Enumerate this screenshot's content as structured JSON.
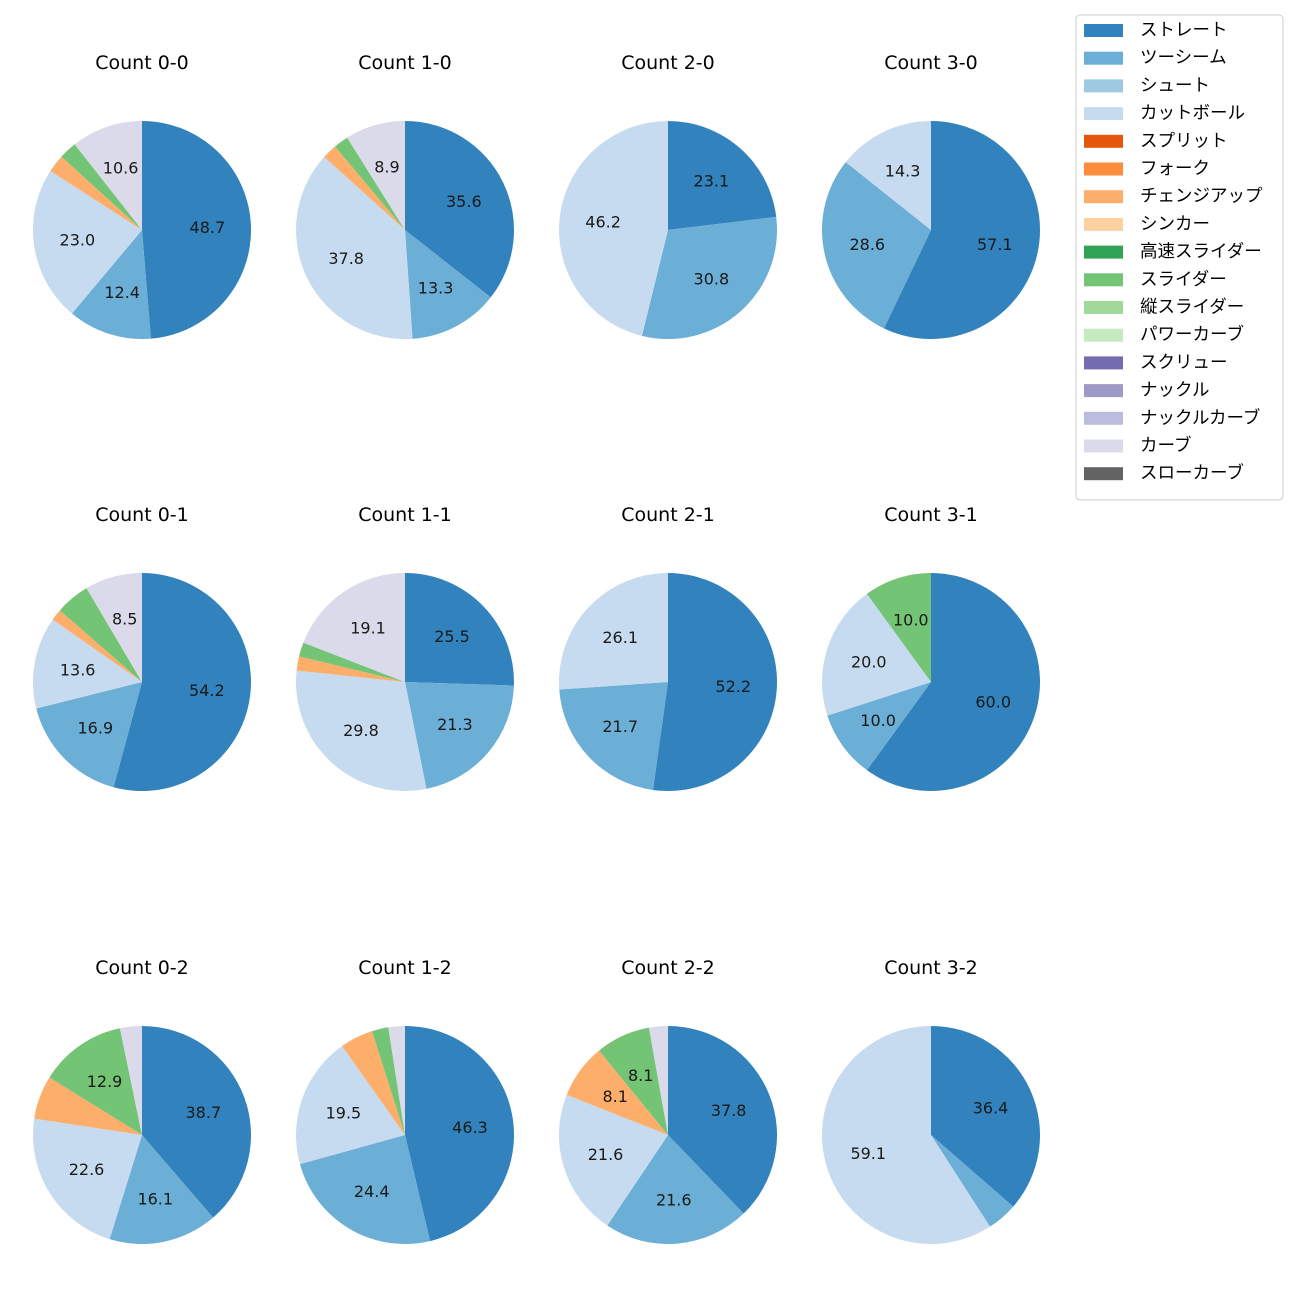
{
  "chart_data": {
    "type": "pie",
    "legend_position": "top-right",
    "legend": [
      {
        "name": "ストレート",
        "color": "#3182bd"
      },
      {
        "name": "ツーシーム",
        "color": "#6baed6"
      },
      {
        "name": "シュート",
        "color": "#9ecae1"
      },
      {
        "name": "カットボール",
        "color": "#c6dbef"
      },
      {
        "name": "スプリット",
        "color": "#e6550d"
      },
      {
        "name": "フォーク",
        "color": "#fd8d3c"
      },
      {
        "name": "チェンジアップ",
        "color": "#fdae6b"
      },
      {
        "name": "シンカー",
        "color": "#fdd0a2"
      },
      {
        "name": "高速スライダー",
        "color": "#31a354"
      },
      {
        "name": "スライダー",
        "color": "#74c476"
      },
      {
        "name": "縦スライダー",
        "color": "#a1d99b"
      },
      {
        "name": "パワーカーブ",
        "color": "#c7e9c0"
      },
      {
        "name": "スクリュー",
        "color": "#756bb1"
      },
      {
        "name": "ナックル",
        "color": "#9e9ac8"
      },
      {
        "name": "ナックルカーブ",
        "color": "#bcbddc"
      },
      {
        "name": "カーブ",
        "color": "#dadaeb"
      },
      {
        "name": "スローカーブ",
        "color": "#636363"
      }
    ],
    "charts": [
      {
        "title": "Count 0-0",
        "slices": [
          {
            "pitch": "ストレート",
            "value": 48.7,
            "label": "48.7"
          },
          {
            "pitch": "ツーシーム",
            "value": 12.4,
            "label": "12.4"
          },
          {
            "pitch": "カットボール",
            "value": 23.0,
            "label": "23.0"
          },
          {
            "pitch": "チェンジアップ",
            "value": 2.65,
            "label": ""
          },
          {
            "pitch": "スライダー",
            "value": 2.65,
            "label": ""
          },
          {
            "pitch": "カーブ",
            "value": 10.6,
            "label": "10.6"
          }
        ]
      },
      {
        "title": "Count 1-0",
        "slices": [
          {
            "pitch": "ストレート",
            "value": 35.6,
            "label": "35.6"
          },
          {
            "pitch": "ツーシーム",
            "value": 13.3,
            "label": "13.3"
          },
          {
            "pitch": "カットボール",
            "value": 37.8,
            "label": "37.8"
          },
          {
            "pitch": "チェンジアップ",
            "value": 2.2,
            "label": ""
          },
          {
            "pitch": "スライダー",
            "value": 2.2,
            "label": ""
          },
          {
            "pitch": "カーブ",
            "value": 8.9,
            "label": "8.9"
          }
        ]
      },
      {
        "title": "Count 2-0",
        "slices": [
          {
            "pitch": "ストレート",
            "value": 23.1,
            "label": "23.1"
          },
          {
            "pitch": "ツーシーム",
            "value": 30.8,
            "label": "30.8"
          },
          {
            "pitch": "カットボール",
            "value": 46.2,
            "label": "46.2"
          }
        ]
      },
      {
        "title": "Count 3-0",
        "slices": [
          {
            "pitch": "ストレート",
            "value": 57.1,
            "label": "57.1"
          },
          {
            "pitch": "ツーシーム",
            "value": 28.6,
            "label": "28.6"
          },
          {
            "pitch": "カットボール",
            "value": 14.3,
            "label": "14.3"
          }
        ]
      },
      {
        "title": "Count 0-1",
        "slices": [
          {
            "pitch": "ストレート",
            "value": 54.2,
            "label": "54.2"
          },
          {
            "pitch": "ツーシーム",
            "value": 16.9,
            "label": "16.9"
          },
          {
            "pitch": "カットボール",
            "value": 13.6,
            "label": "13.6"
          },
          {
            "pitch": "チェンジアップ",
            "value": 1.7,
            "label": ""
          },
          {
            "pitch": "スライダー",
            "value": 5.1,
            "label": ""
          },
          {
            "pitch": "カーブ",
            "value": 8.5,
            "label": "8.5"
          }
        ]
      },
      {
        "title": "Count 1-1",
        "slices": [
          {
            "pitch": "ストレート",
            "value": 25.5,
            "label": "25.5"
          },
          {
            "pitch": "ツーシーム",
            "value": 21.3,
            "label": "21.3"
          },
          {
            "pitch": "カットボール",
            "value": 29.8,
            "label": "29.8"
          },
          {
            "pitch": "チェンジアップ",
            "value": 2.1,
            "label": ""
          },
          {
            "pitch": "スライダー",
            "value": 2.1,
            "label": ""
          },
          {
            "pitch": "カーブ",
            "value": 19.1,
            "label": "19.1"
          }
        ]
      },
      {
        "title": "Count 2-1",
        "slices": [
          {
            "pitch": "ストレート",
            "value": 52.2,
            "label": "52.2"
          },
          {
            "pitch": "ツーシーム",
            "value": 21.7,
            "label": "21.7"
          },
          {
            "pitch": "カットボール",
            "value": 26.1,
            "label": "26.1"
          }
        ]
      },
      {
        "title": "Count 3-1",
        "slices": [
          {
            "pitch": "ストレート",
            "value": 60.0,
            "label": "60.0"
          },
          {
            "pitch": "ツーシーム",
            "value": 10.0,
            "label": "10.0"
          },
          {
            "pitch": "カットボール",
            "value": 20.0,
            "label": "20.0"
          },
          {
            "pitch": "スライダー",
            "value": 10.0,
            "label": "10.0"
          }
        ]
      },
      {
        "title": "Count 0-2",
        "slices": [
          {
            "pitch": "ストレート",
            "value": 38.7,
            "label": "38.7"
          },
          {
            "pitch": "ツーシーム",
            "value": 16.1,
            "label": "16.1"
          },
          {
            "pitch": "カットボール",
            "value": 22.6,
            "label": "22.6"
          },
          {
            "pitch": "チェンジアップ",
            "value": 6.45,
            "label": ""
          },
          {
            "pitch": "スライダー",
            "value": 12.9,
            "label": "12.9"
          },
          {
            "pitch": "カーブ",
            "value": 3.25,
            "label": ""
          }
        ]
      },
      {
        "title": "Count 1-2",
        "slices": [
          {
            "pitch": "ストレート",
            "value": 46.3,
            "label": "46.3"
          },
          {
            "pitch": "ツーシーム",
            "value": 24.4,
            "label": "24.4"
          },
          {
            "pitch": "カットボール",
            "value": 19.5,
            "label": "19.5"
          },
          {
            "pitch": "チェンジアップ",
            "value": 4.9,
            "label": ""
          },
          {
            "pitch": "スライダー",
            "value": 2.45,
            "label": ""
          },
          {
            "pitch": "カーブ",
            "value": 2.45,
            "label": ""
          }
        ]
      },
      {
        "title": "Count 2-2",
        "slices": [
          {
            "pitch": "ストレート",
            "value": 37.8,
            "label": "37.8"
          },
          {
            "pitch": "ツーシーム",
            "value": 21.6,
            "label": "21.6"
          },
          {
            "pitch": "カットボール",
            "value": 21.6,
            "label": "21.6"
          },
          {
            "pitch": "チェンジアップ",
            "value": 8.1,
            "label": "8.1"
          },
          {
            "pitch": "スライダー",
            "value": 8.1,
            "label": "8.1"
          },
          {
            "pitch": "カーブ",
            "value": 2.8,
            "label": ""
          }
        ]
      },
      {
        "title": "Count 3-2",
        "slices": [
          {
            "pitch": "ストレート",
            "value": 36.4,
            "label": "36.4"
          },
          {
            "pitch": "ツーシーム",
            "value": 4.5,
            "label": ""
          },
          {
            "pitch": "カットボール",
            "value": 59.1,
            "label": "59.1"
          }
        ]
      }
    ]
  }
}
